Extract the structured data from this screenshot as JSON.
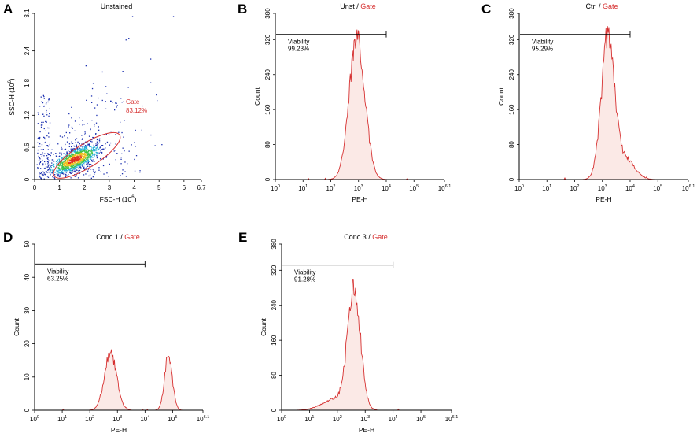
{
  "chart_data": [
    {
      "id": "A",
      "type": "scatter",
      "panel_letter": "A",
      "title": "Unstained",
      "xlabel": "FSC-H (10^6)",
      "ylabel": "SSC-H (10^6)",
      "xlim": [
        0,
        6.7
      ],
      "ylim": [
        0,
        3.1
      ],
      "xticks": [
        "0",
        "1",
        "2",
        "3",
        "4",
        "5",
        "6",
        "6.7"
      ],
      "yticks": [
        "0",
        "0.6",
        "1.2",
        "1.8",
        "2.4",
        "3.1"
      ],
      "gate": {
        "name": "Gate",
        "percent": "83.12%",
        "center": [
          2.1,
          0.45
        ],
        "rx_data": 1.55,
        "ry_data": 0.22,
        "angle_deg": -32
      },
      "population": {
        "center": [
          1.6,
          0.38
        ],
        "n_dense": 900,
        "n_sparse": 350
      }
    },
    {
      "id": "B",
      "type": "area",
      "panel_letter": "B",
      "title": "Unst",
      "title_gate": "Gate",
      "separator": " / ",
      "xlabel": "PE-H",
      "ylabel": "Count",
      "xlim": [
        0,
        6.1
      ],
      "ylim": [
        0,
        380
      ],
      "yticks": [
        "0",
        "80",
        "160",
        "240",
        "320",
        "380"
      ],
      "xticks": [
        "10^0",
        "10^1",
        "10^2",
        "10^3",
        "10^4",
        "10^5",
        "10^6.1"
      ],
      "gate": {
        "label": "Viability",
        "percent": "99.23%",
        "x_start": 0,
        "x_end": 4.0,
        "y": 332
      },
      "peaks": [
        {
          "mu": 2.95,
          "sigma": 0.28,
          "height": 325
        }
      ],
      "noise_seed": 3
    },
    {
      "id": "C",
      "type": "area",
      "panel_letter": "C",
      "title": "Ctrl",
      "title_gate": "Gate",
      "separator": " / ",
      "xlabel": "PE-H",
      "ylabel": "Count",
      "xlim": [
        0,
        6.1
      ],
      "ylim": [
        0,
        380
      ],
      "yticks": [
        "0",
        "80",
        "160",
        "240",
        "320",
        "380"
      ],
      "xticks": [
        "10^0",
        "10^1",
        "10^2",
        "10^3",
        "10^4",
        "10^5",
        "10^6.1"
      ],
      "gate": {
        "label": "Viability",
        "percent": "95.29%",
        "x_start": 0,
        "x_end": 4.0,
        "y": 332
      },
      "peaks": [
        {
          "mu": 3.2,
          "sigma": 0.24,
          "height": 320
        },
        {
          "mu": 3.85,
          "sigma": 0.32,
          "height": 45
        }
      ],
      "noise_seed": 7
    },
    {
      "id": "D",
      "type": "area",
      "panel_letter": "D",
      "title": "Conc 1",
      "title_gate": "Gate",
      "separator": " / ",
      "xlabel": "PE-H",
      "ylabel": "Count",
      "xlim": [
        0,
        6.1
      ],
      "ylim": [
        0,
        50
      ],
      "yticks": [
        "0",
        "10",
        "20",
        "30",
        "40",
        "50"
      ],
      "xticks": [
        "10^0",
        "10^1",
        "10^2",
        "10^3",
        "10^4",
        "10^5",
        "10^6.1"
      ],
      "gate": {
        "label": "Viability",
        "percent": "63.25%",
        "x_start": 0,
        "x_end": 4.0,
        "y": 44
      },
      "peaks": [
        {
          "mu": 2.75,
          "sigma": 0.22,
          "height": 17
        },
        {
          "mu": 4.85,
          "sigma": 0.14,
          "height": 16
        }
      ],
      "noise_seed": 11
    },
    {
      "id": "E",
      "type": "area",
      "panel_letter": "E",
      "title": "Conc 3",
      "title_gate": "Gate",
      "separator": " / ",
      "xlabel": "PE-H",
      "ylabel": "Count",
      "xlim": [
        0,
        6.1
      ],
      "ylim": [
        0,
        380
      ],
      "yticks": [
        "0",
        "80",
        "160",
        "240",
        "320",
        "380"
      ],
      "xticks": [
        "10^0",
        "10^1",
        "10^2",
        "10^3",
        "10^4",
        "10^5",
        "10^6.1"
      ],
      "gate": {
        "label": "Viability",
        "percent": "91.28%",
        "x_start": 0,
        "x_end": 4.0,
        "y": 332
      },
      "peaks": [
        {
          "mu": 2.6,
          "sigma": 0.23,
          "height": 270
        },
        {
          "mu": 1.9,
          "sigma": 0.45,
          "height": 25
        }
      ],
      "noise_seed": 5
    }
  ],
  "colors": {
    "curve": "#d63030",
    "fill": "#fbe9e6",
    "gate_ellipse": "#d63030",
    "axis": "#000000"
  }
}
